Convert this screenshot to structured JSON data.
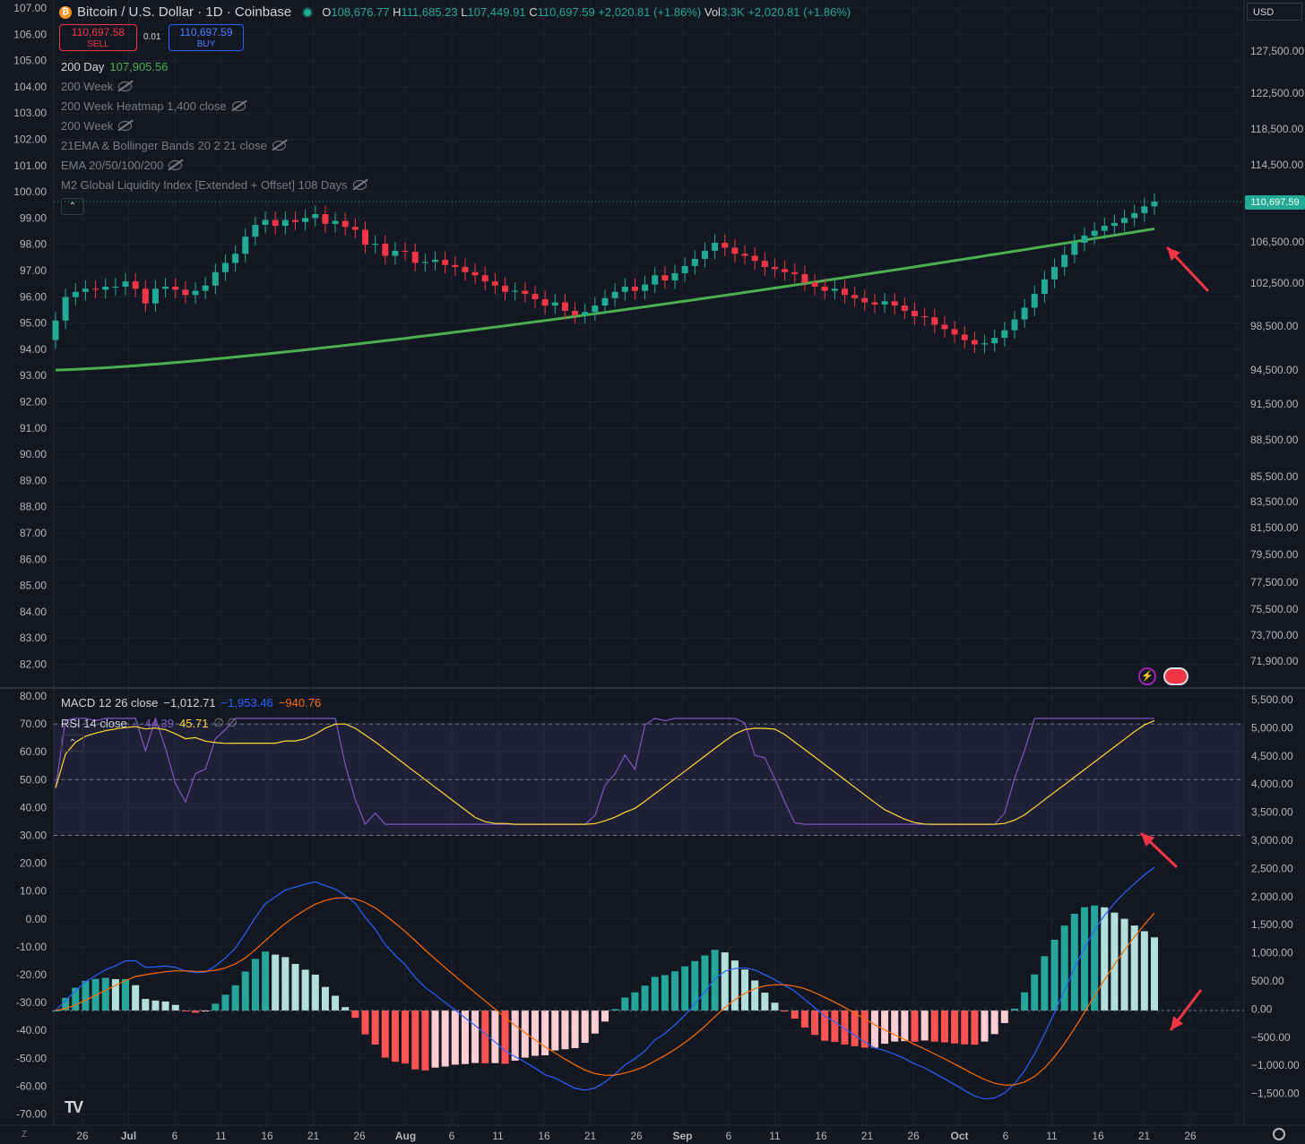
{
  "header": {
    "symbol": "Bitcoin / U.S. Dollar · 1D · Coinbase",
    "o_label": "O",
    "o": "108,676.77",
    "h_label": "H",
    "h": "111,685.23",
    "l_label": "L",
    "l": "107,449.91",
    "c_label": "C",
    "c": "110,697.59",
    "change": "+2,020.81 (+1.86%)",
    "vol_label": "Vol",
    "vol": "3.3K",
    "vol_change": "+2,020.81 (+1.86%)"
  },
  "trade": {
    "sell_price": "110,697.58",
    "sell_label": "SELL",
    "spread": "0.01",
    "buy_price": "110,697.59",
    "buy_label": "BUY"
  },
  "indicators": [
    {
      "name": "200 Day",
      "value": "107,905.56",
      "visible": true
    },
    {
      "name": "200 Week",
      "visible": false
    },
    {
      "name": "200 Week Heatmap 1,400 close",
      "visible": false
    },
    {
      "name": "200 Week",
      "visible": false
    },
    {
      "name": "21EMA & Bollinger Bands 20 2 21 close",
      "visible": false
    },
    {
      "name": "EMA 20/50/100/200",
      "visible": false
    },
    {
      "name": "M2 Global Liquidity Index [Extended + Offset] 108 Days",
      "visible": false
    }
  ],
  "macd_legend": {
    "title": "MACD 12 26 close",
    "hist": "−1,012.71",
    "macd": "−1,953.46",
    "signal": "−940.76"
  },
  "rsi_legend": {
    "title": "RSI 14 close",
    "rsi": "44.39",
    "ma": "45.71",
    "extra": "∅ ∅"
  },
  "currency": "USD",
  "last_price_tag": "110,697.59",
  "colors": {
    "bg": "#131722",
    "up": "#22ab94",
    "down": "#f23645",
    "ma200": "#4caf50",
    "macd": "#2962ff",
    "signal": "#ff6d00",
    "rsi": "#7e57c2",
    "rsi_ma": "#fdd835",
    "hist_up_strong": "#26a69a",
    "hist_up_weak": "#b2dfdb",
    "hist_dn_strong": "#ff5252",
    "hist_dn_weak": "#ffcdd2"
  },
  "chart_data": {
    "type": "candlestick",
    "left_axis_ticks": [
      "107.00",
      "106.00",
      "105.00",
      "104.00",
      "103.00",
      "102.00",
      "101.00",
      "100.00",
      "99.00",
      "98.00",
      "97.00",
      "96.00",
      "95.00",
      "94.00",
      "93.00",
      "92.00",
      "91.00",
      "90.00",
      "89.00",
      "88.00",
      "87.00",
      "86.00",
      "85.00",
      "84.00",
      "83.00",
      "82.00"
    ],
    "right_axis_ticks": [
      "127,500.00",
      "122,500.00",
      "118,500.00",
      "114,500.00",
      "110,697.59",
      "106,500.00",
      "102,500.00",
      "98,500.00",
      "94,500.00",
      "91,500.00",
      "88,500.00",
      "85,500.00",
      "83,500.00",
      "81,500.00",
      "79,500.00",
      "77,500.00",
      "75,500.00",
      "73,700.00",
      "71,900.00"
    ],
    "lower_left_ticks": [
      "80.00",
      "70.00",
      "60.00",
      "50.00",
      "40.00",
      "30.00",
      "20.00",
      "10.00",
      "0.00",
      "-10.00",
      "-20.00",
      "-30.00",
      "-40.00",
      "-50.00",
      "-60.00",
      "-70.00"
    ],
    "lower_right_ticks": [
      "5,500.00",
      "5,000.00",
      "4,500.00",
      "4,000.00",
      "3,500.00",
      "3,000.00",
      "2,500.00",
      "2,000.00",
      "1,500.00",
      "1,000.00",
      "500.00",
      "0.00",
      "−500.00",
      "−1,000.00",
      "−1,500.00"
    ],
    "x_ticks": [
      "26",
      "Jul",
      "6",
      "11",
      "16",
      "21",
      "26",
      "Aug",
      "6",
      "11",
      "16",
      "21",
      "26",
      "Sep",
      "6",
      "11",
      "16",
      "21",
      "26",
      "Oct",
      "6",
      "11",
      "16",
      "21",
      "26"
    ],
    "closes": [
      99000,
      101200,
      101700,
      102000,
      101900,
      102200,
      102200,
      102700,
      102000,
      100600,
      102000,
      102200,
      101900,
      101400,
      101800,
      102300,
      103600,
      104500,
      105400,
      107100,
      108300,
      108800,
      108200,
      108800,
      108600,
      109000,
      109400,
      108400,
      108700,
      108100,
      107800,
      106300,
      106400,
      105200,
      105700,
      105600,
      104500,
      104600,
      104800,
      104300,
      104100,
      103600,
      103300,
      102700,
      102300,
      101700,
      101800,
      101500,
      101000,
      100400,
      100700,
      99900,
      99500,
      99800,
      100400,
      101100,
      101700,
      102200,
      101800,
      102400,
      103300,
      102800,
      103500,
      104200,
      104900,
      105700,
      106500,
      106000,
      105400,
      105200,
      104700,
      104100,
      103900,
      103600,
      103400,
      102600,
      102200,
      101800,
      102000,
      101400,
      101100,
      100700,
      100500,
      100800,
      100400,
      99900,
      99400,
      99300,
      98600,
      98200,
      97700,
      97200,
      96800,
      96900,
      97400,
      98100,
      99100,
      100200,
      101500,
      102900,
      104100,
      105300,
      106500,
      107200,
      107700,
      108200,
      108500,
      109000,
      109500,
      110200,
      110697.59
    ],
    "ohlc_last": {
      "open": 108676.77,
      "high": 111685.23,
      "low": 107449.91,
      "close": 110697.59
    },
    "ma200_start": 94500,
    "ma200_end": 107905.56,
    "rsi_overbought": 70,
    "rsi_oversold": 30
  }
}
